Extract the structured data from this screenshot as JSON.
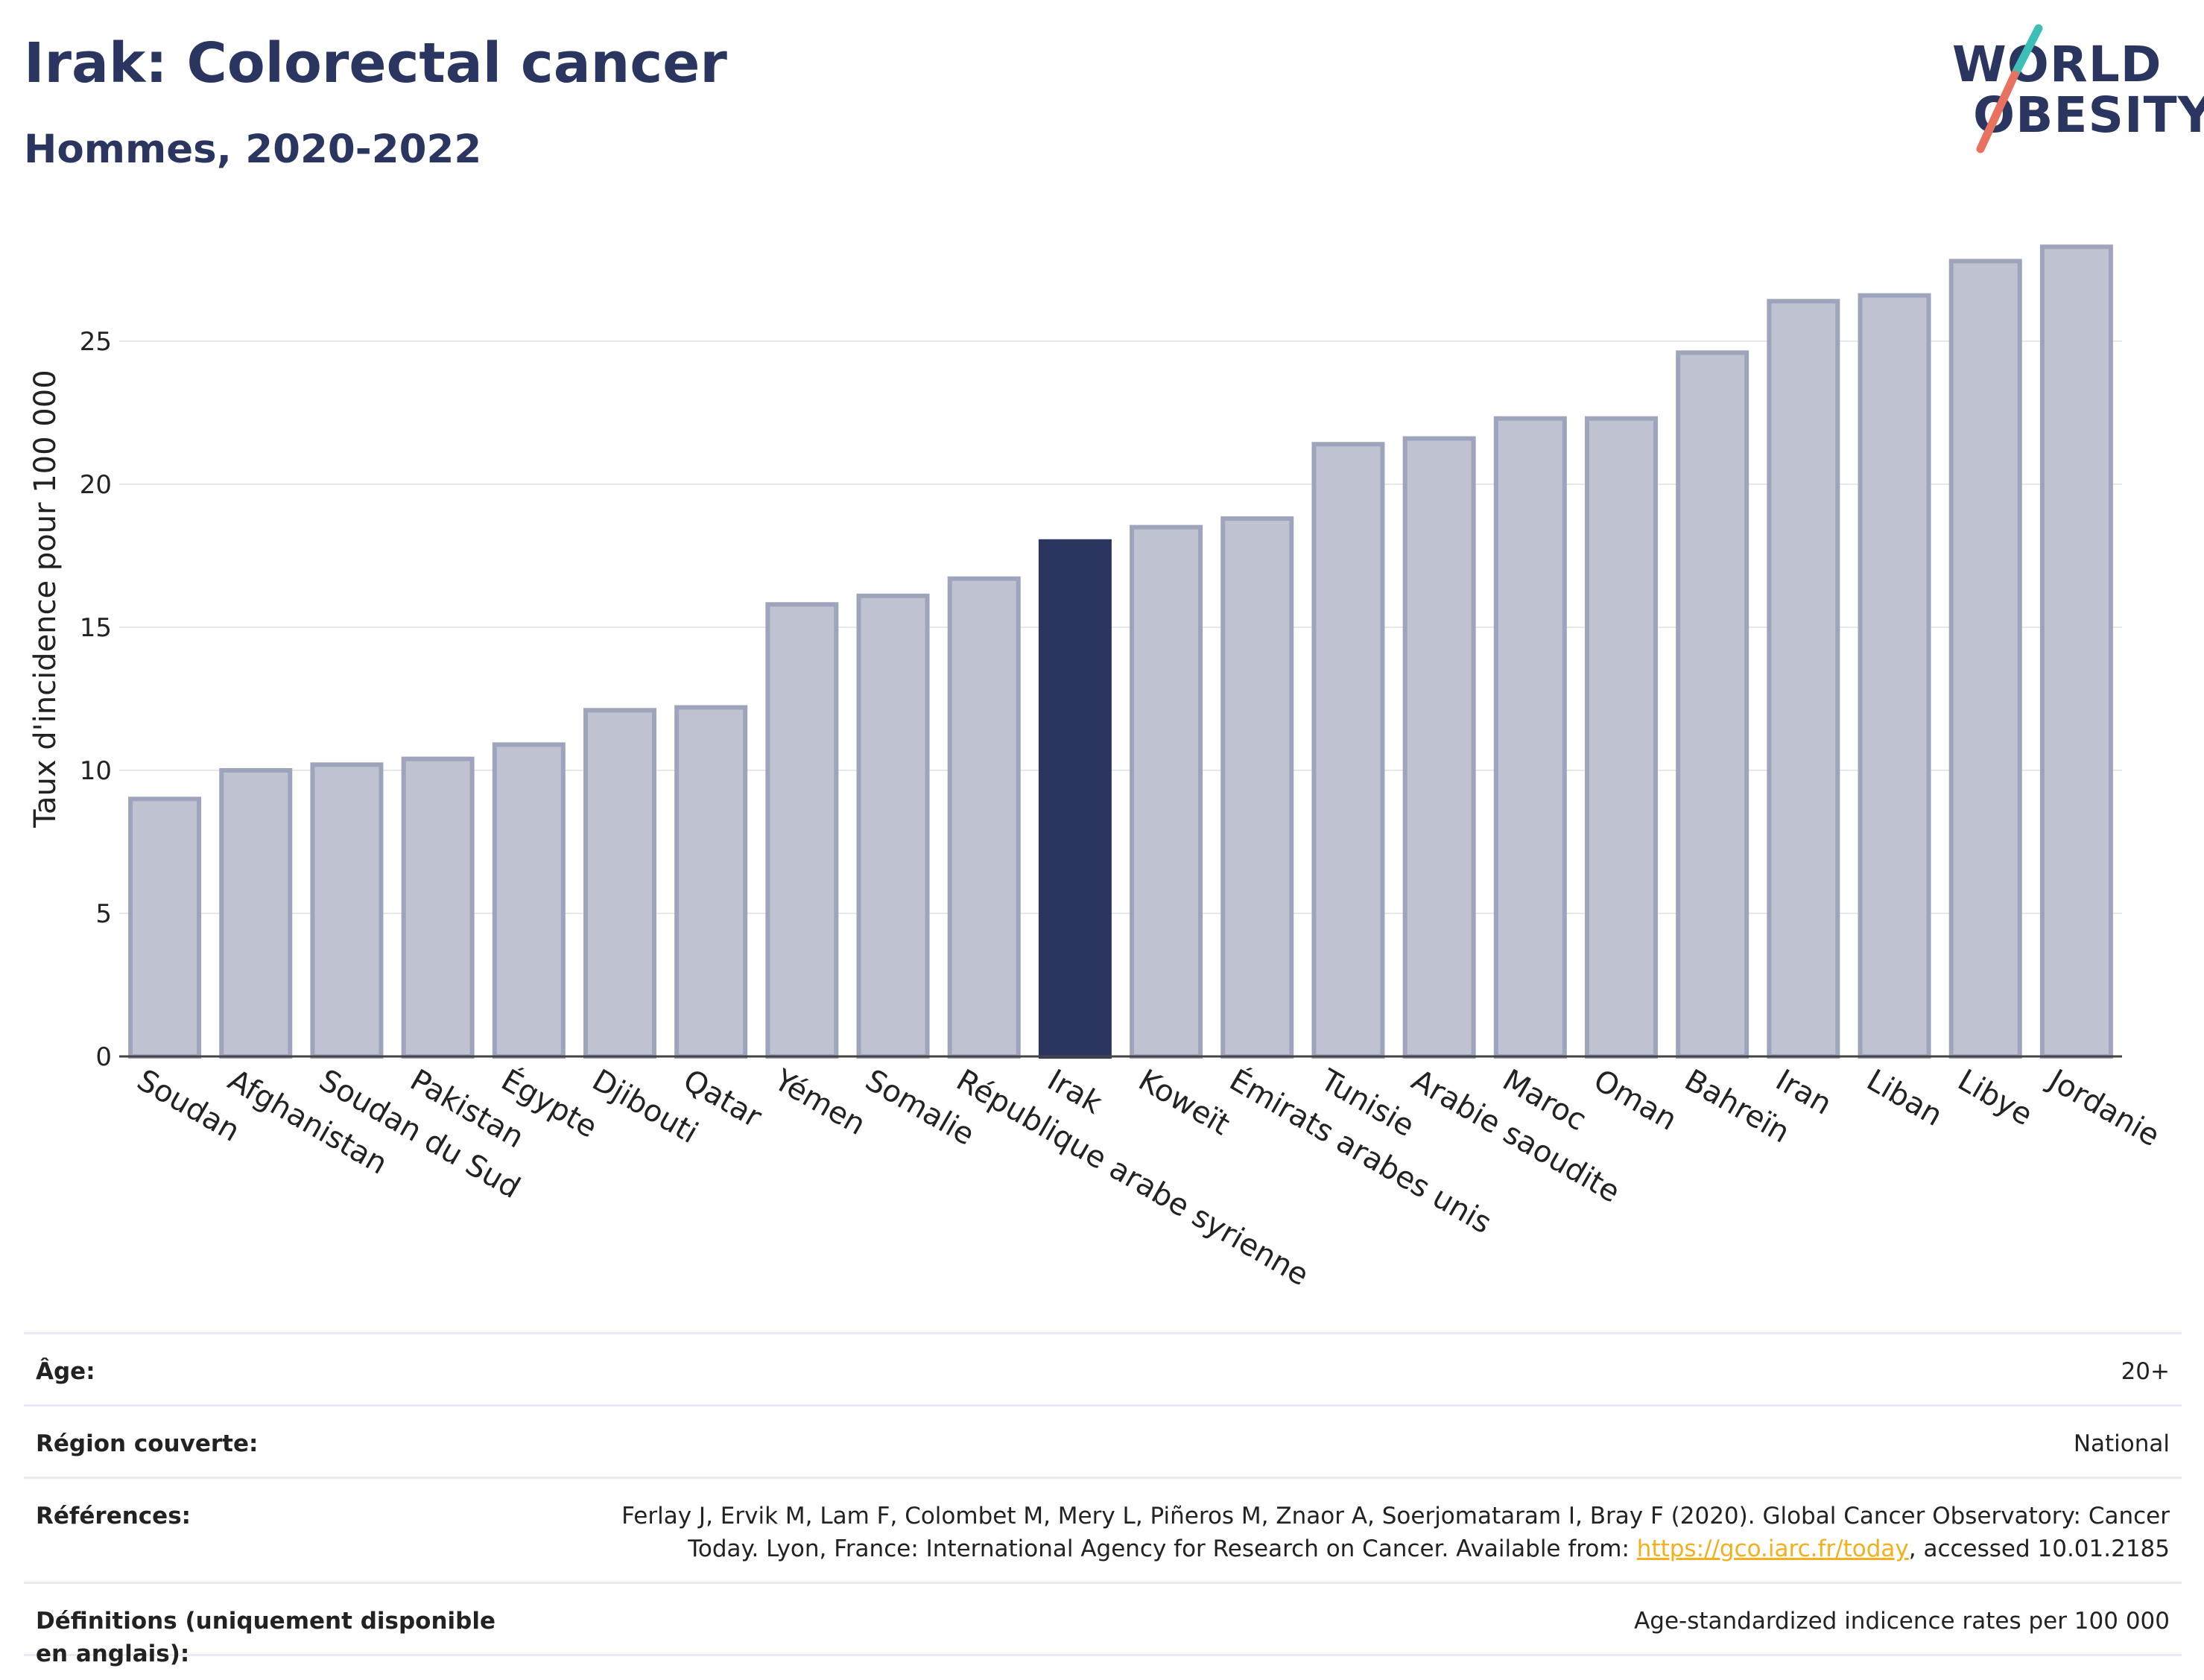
{
  "header": {
    "title": "Irak: Colorectal cancer",
    "subtitle": "Hommes, 2020-2022",
    "logo_line1": "WORLD",
    "logo_line2": "OBESITY"
  },
  "colors": {
    "highlight": "#2a3560",
    "bar": "#bfc3d1",
    "bar_border": "#9ea4bc",
    "grid": "#e6e8ee",
    "logo_teal": "#3dbfb7",
    "logo_coral": "#e8715f",
    "link": "#f2b01e"
  },
  "chart_data": {
    "type": "bar",
    "title": "Irak: Colorectal cancer",
    "subtitle": "Hommes, 2020-2022",
    "xlabel": "",
    "ylabel": "Taux d'incidence pour 100 000",
    "ylim": [
      0,
      30
    ],
    "yticks": [
      0,
      5,
      10,
      15,
      20,
      25
    ],
    "grid": true,
    "highlight": "Irak",
    "categories": [
      "Soudan",
      "Afghanistan",
      "Soudan du Sud",
      "Pakistan",
      "Égypte",
      "Djibouti",
      "Qatar",
      "Yémen",
      "Somalie",
      "République arabe syrienne",
      "Irak",
      "Koweït",
      "Émirats arabes unis",
      "Tunisie",
      "Arabie saoudite",
      "Maroc",
      "Oman",
      "Bahreïn",
      "Iran",
      "Liban",
      "Libye",
      "Jordanie"
    ],
    "values": [
      9.0,
      10.0,
      10.2,
      10.4,
      10.9,
      12.1,
      12.2,
      15.8,
      16.1,
      16.7,
      18.0,
      18.5,
      18.8,
      21.4,
      21.6,
      22.3,
      22.3,
      24.6,
      26.4,
      26.6,
      27.8,
      28.3
    ]
  },
  "info": {
    "rows": [
      {
        "label": "Âge:",
        "value": "20+"
      },
      {
        "label": "Région couverte:",
        "value": "National"
      },
      {
        "label": "Références:",
        "value_before": "Ferlay J, Ervik M, Lam F, Colombet M, Mery L, Piñeros M, Znaor A, Soerjomataram I, Bray F (2020). Global Cancer Observatory: Cancer Today. Lyon, France: International Agency for Research on Cancer. Available from: ",
        "link": "https://gco.iarc.fr/today",
        "value_after": ", accessed 10.01.2185"
      },
      {
        "label": "Définitions (uniquement disponible en anglais):",
        "value": "Age-standardized indicence rates per 100 000"
      }
    ]
  }
}
